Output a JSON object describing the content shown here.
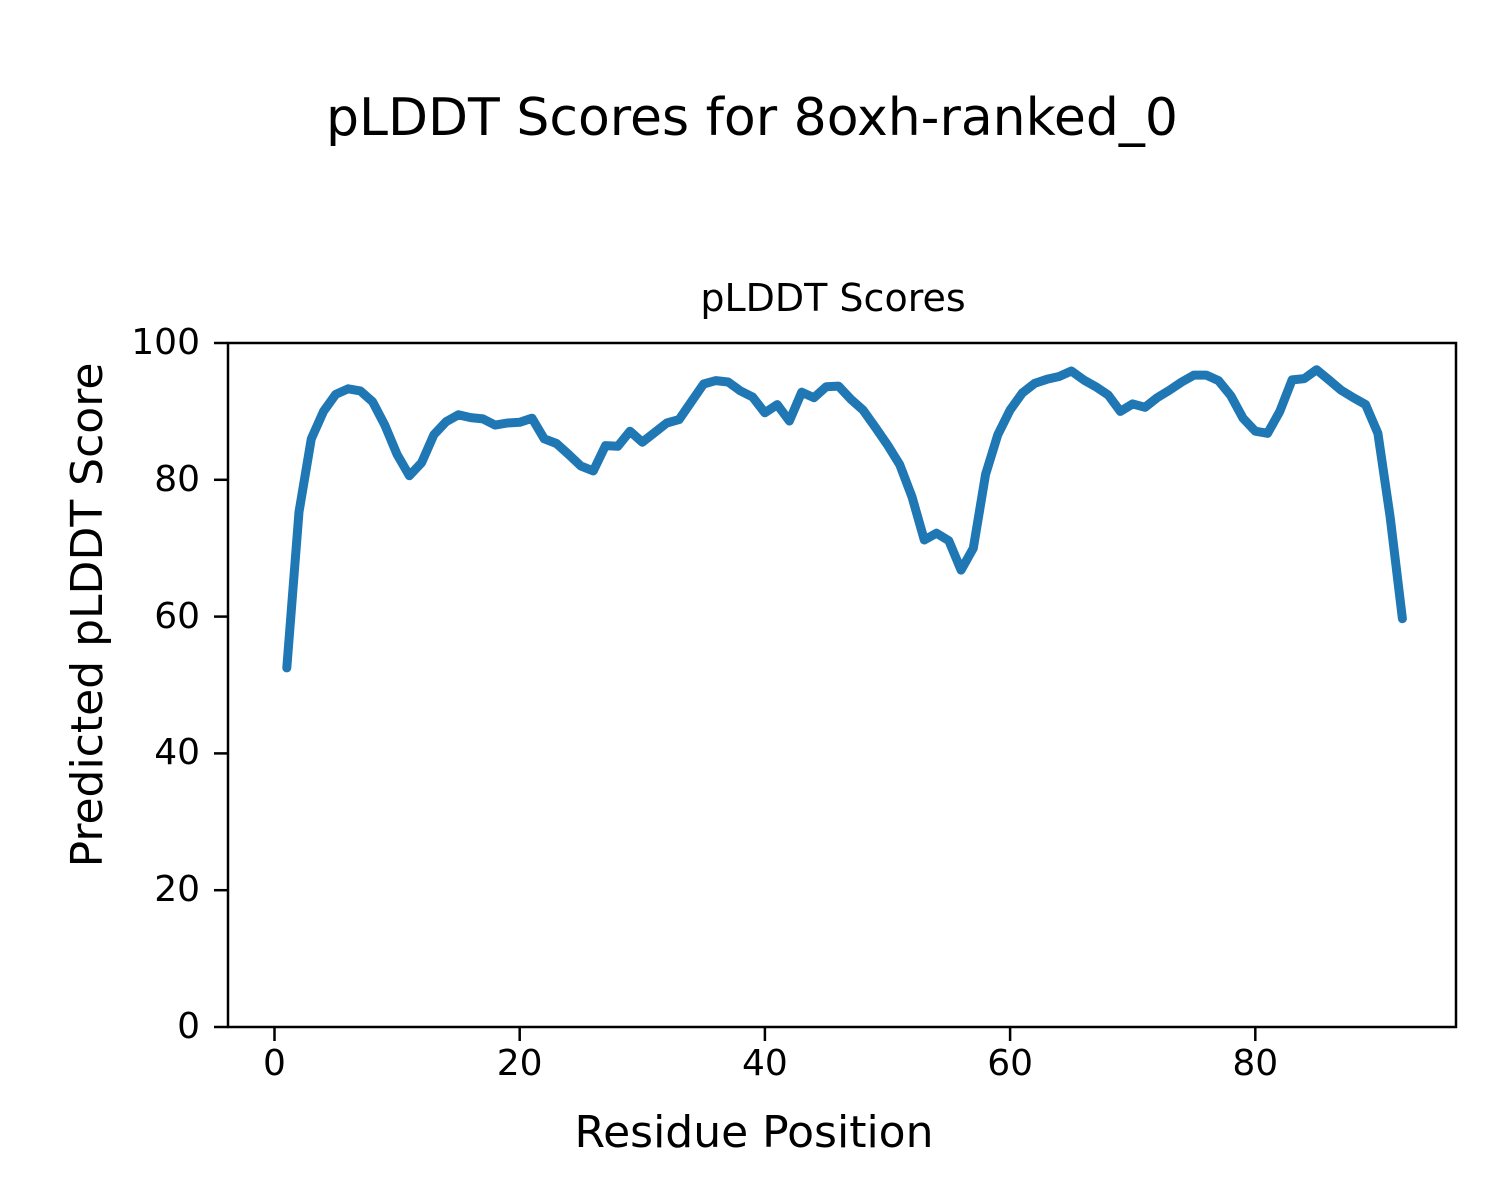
{
  "figure": {
    "suptitle": "pLDDT Scores for 8oxh-ranked_0"
  },
  "chart_data": {
    "type": "line",
    "title": "pLDDT Scores",
    "xlabel": "Residue Position",
    "ylabel": "Predicted pLDDT Score",
    "x_start": 1,
    "x_end": 92,
    "xlim": [
      -4,
      97
    ],
    "ylim": [
      0,
      100
    ],
    "xticks": [
      0,
      20,
      40,
      60,
      80
    ],
    "yticks": [
      0,
      20,
      40,
      60,
      80,
      100
    ],
    "grid": false,
    "legend": "none",
    "line_color": "#1f77b4",
    "background_color": "#ffffff",
    "axis_color": "#000000",
    "values": [
      52.5,
      75.3,
      86.0,
      90.0,
      92.5,
      93.3,
      93.0,
      91.4,
      88.0,
      83.7,
      80.6,
      82.5,
      86.6,
      88.5,
      89.5,
      89.1,
      88.9,
      88.0,
      88.3,
      88.4,
      89.0,
      86.0,
      85.3,
      83.7,
      82.0,
      81.3,
      85.0,
      84.9,
      87.1,
      85.5,
      86.9,
      88.3,
      88.8,
      91.4,
      94.0,
      94.5,
      94.3,
      93.0,
      92.1,
      89.8,
      91.0,
      88.6,
      92.8,
      92.0,
      93.6,
      93.7,
      91.8,
      90.2,
      87.7,
      85.1,
      82.2,
      77.5,
      71.2,
      72.2,
      71.1,
      66.8,
      70.0,
      80.8,
      86.6,
      90.2,
      92.7,
      94.1,
      94.7,
      95.1,
      95.9,
      94.6,
      93.6,
      92.4,
      90.0,
      91.1,
      90.6,
      92.0,
      93.1,
      94.3,
      95.3,
      95.3,
      94.5,
      92.3,
      89.0,
      87.1,
      86.8,
      90.0,
      94.6,
      94.8,
      96.1,
      94.6,
      93.1,
      92.0,
      91.0,
      86.8,
      74.5,
      59.7
    ]
  }
}
